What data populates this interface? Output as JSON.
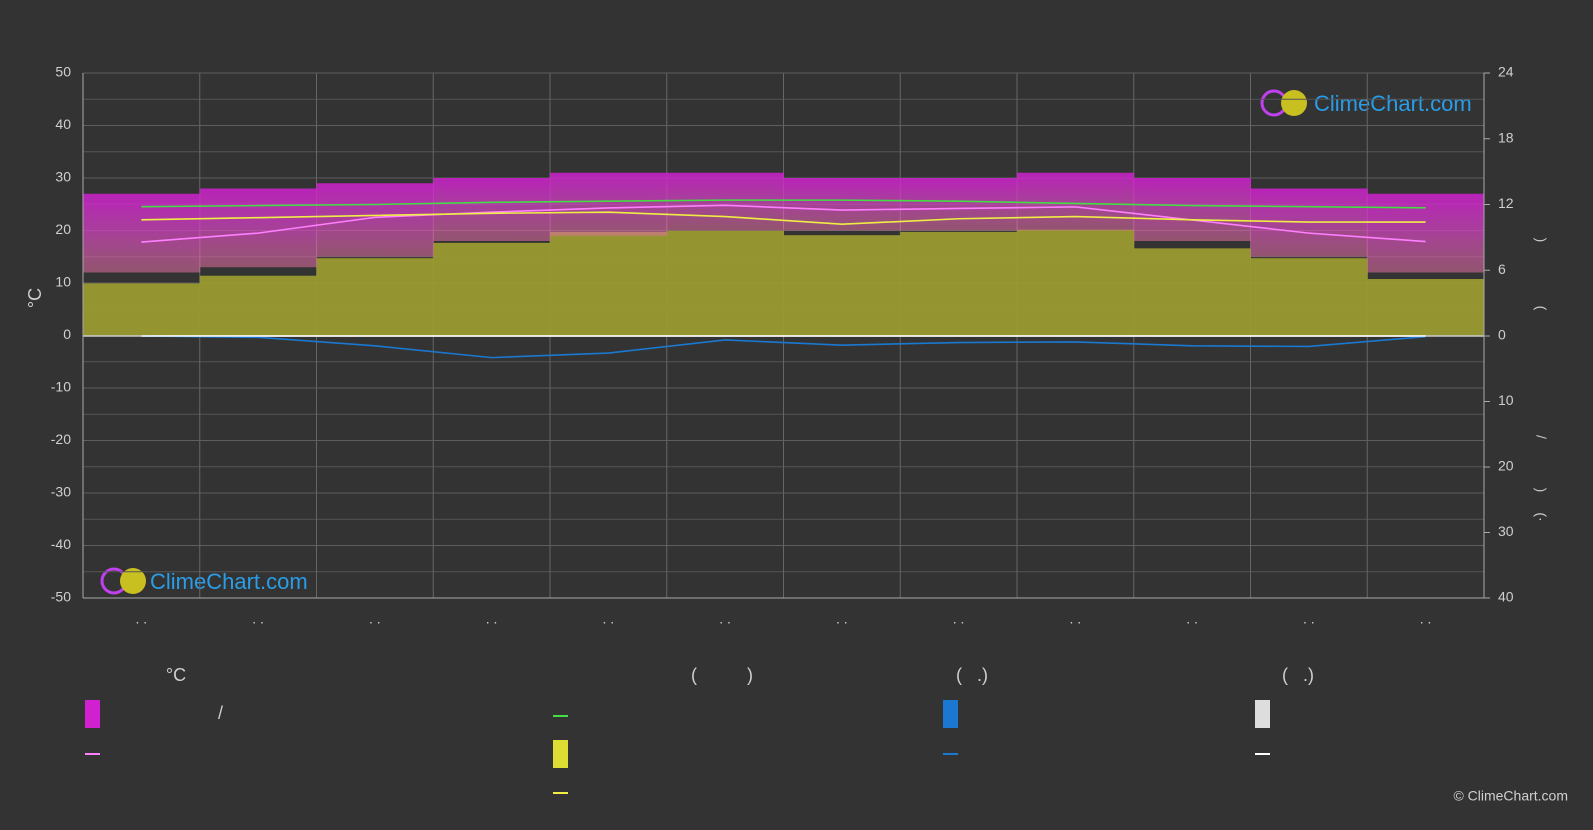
{
  "chart_data": {
    "type": "line",
    "ylabel": "°C",
    "right_axis_labels": [
      ")",
      "(",
      "/",
      ")",
      "(·"
    ],
    "categories": [
      ". .",
      ". .",
      ". .",
      ". .",
      ". .",
      ". .",
      ". .",
      ". .",
      ". .",
      ". .",
      ". .",
      ". ."
    ],
    "ylim": [
      -50,
      50
    ],
    "yticks": [
      -50,
      -40,
      -30,
      -20,
      -10,
      0,
      10,
      20,
      30,
      40,
      50
    ],
    "y2lim": [
      0,
      24
    ],
    "y2ticks": [
      0,
      6,
      12,
      18,
      24
    ],
    "precip_lim": [
      0,
      40
    ],
    "precip_ticks": [
      10,
      20,
      30,
      40
    ],
    "grid": true,
    "temp_band": {
      "color": "#d020d0",
      "high": [
        27,
        28,
        29,
        30,
        31,
        31,
        30,
        30,
        31,
        30,
        28,
        27
      ],
      "low": [
        12,
        13,
        15,
        18,
        19,
        20,
        20,
        20,
        20,
        18,
        15,
        12
      ]
    },
    "sun_band": {
      "color": "#9a9a30",
      "axis": "y2",
      "values": [
        4.8,
        5.5,
        7.1,
        8.5,
        9.5,
        9.6,
        9.2,
        9.5,
        9.7,
        8.0,
        7.1,
        5.2
      ]
    },
    "series": [
      {
        "color": "#ff80ff",
        "values": [
          17.8,
          19.5,
          22.5,
          23.5,
          24.3,
          24.8,
          23.9,
          24.2,
          24.5,
          22.0,
          19.5,
          17.9
        ]
      },
      {
        "color": "#44dd44",
        "axis": "y2",
        "values": [
          11.8,
          11.9,
          12.0,
          12.2,
          12.3,
          12.4,
          12.4,
          12.3,
          12.1,
          11.9,
          11.8,
          11.7
        ]
      },
      {
        "color": "#eeee44",
        "axis": "y2",
        "values": [
          10.6,
          10.8,
          11.0,
          11.2,
          11.3,
          10.9,
          10.2,
          10.7,
          10.9,
          10.6,
          10.4,
          10.4
        ]
      },
      {
        "color": "#1a78d0",
        "axis": "precip",
        "values": [
          0,
          0.2,
          1.5,
          3.3,
          2.6,
          0.6,
          1.4,
          1.0,
          0.9,
          1.5,
          1.6,
          0.1
        ]
      },
      {
        "color": "#ffffff",
        "axis": "precip",
        "values": [
          0,
          0,
          0,
          0,
          0,
          0,
          0,
          0,
          0,
          0,
          0,
          0
        ]
      }
    ],
    "legend_headers": [
      "°C",
      "(          )",
      "(   .)",
      "(   .)"
    ],
    "legend_note": "/",
    "watermark": "ClimeChart.com",
    "copyright": "© ClimeChart.com"
  }
}
